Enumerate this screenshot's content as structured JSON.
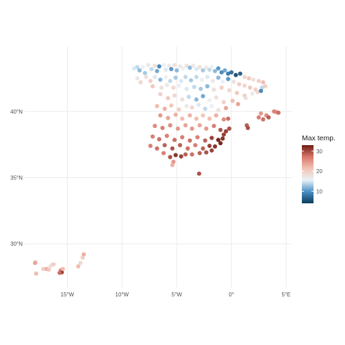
{
  "chart_data": {
    "type": "scatter",
    "title": "",
    "xlabel": "",
    "ylabel": "",
    "xlim": [
      -18.9,
      5.5
    ],
    "ylim": [
      26.7,
      44.9
    ],
    "x_ticks": [
      {
        "value": -15,
        "label": "15°W"
      },
      {
        "value": -10,
        "label": "10°W"
      },
      {
        "value": -5,
        "label": "5°W"
      },
      {
        "value": 0,
        "label": "0°"
      },
      {
        "value": 5,
        "label": "5°E"
      }
    ],
    "y_ticks": [
      {
        "value": 30,
        "label": "30°N"
      },
      {
        "value": 35,
        "label": "35°N"
      },
      {
        "value": 40,
        "label": "40°N"
      }
    ],
    "grid": true,
    "legend": {
      "title": "Max temp.",
      "placement": "right",
      "range": [
        4,
        33
      ],
      "ticks": [
        10,
        20,
        30
      ],
      "colors": [
        "#0b3c5d",
        "#4a90c4",
        "#eaf2f8",
        "#f2c3b3",
        "#d7766a",
        "#6e1b12"
      ]
    },
    "series": [
      {
        "values": [
          [
            -8.9,
            43.25,
            15
          ],
          [
            -8.6,
            43.35,
            14
          ],
          [
            -8.4,
            43.1,
            12
          ],
          [
            -8.1,
            43.35,
            16
          ],
          [
            -7.9,
            42.9,
            13
          ],
          [
            -7.6,
            43.5,
            17
          ],
          [
            -7.3,
            43.2,
            14
          ],
          [
            -7.0,
            43.45,
            18
          ],
          [
            -6.8,
            43.05,
            11
          ],
          [
            -6.6,
            43.4,
            9
          ],
          [
            -6.2,
            43.5,
            16
          ],
          [
            -6.0,
            43.15,
            15
          ],
          [
            -5.7,
            43.45,
            17
          ],
          [
            -5.5,
            43.2,
            10
          ],
          [
            -5.2,
            43.5,
            18
          ],
          [
            -5.0,
            43.1,
            12
          ],
          [
            -4.7,
            43.4,
            17
          ],
          [
            -4.4,
            43.25,
            16
          ],
          [
            -4.1,
            43.45,
            18
          ],
          [
            -3.8,
            43.3,
            12
          ],
          [
            -3.5,
            43.45,
            17
          ],
          [
            -3.2,
            43.2,
            15
          ],
          [
            -2.9,
            43.35,
            18
          ],
          [
            -2.6,
            43.1,
            13
          ],
          [
            -2.3,
            43.3,
            17
          ],
          [
            -2.0,
            43.15,
            14
          ],
          [
            -1.8,
            43.35,
            16
          ],
          [
            -1.5,
            43.05,
            12
          ],
          [
            -1.2,
            43.25,
            10
          ],
          [
            -0.9,
            42.95,
            9
          ],
          [
            -0.6,
            43.1,
            11
          ],
          [
            -0.3,
            42.85,
            8
          ],
          [
            0.0,
            42.95,
            7
          ],
          [
            0.4,
            42.75,
            5
          ],
          [
            0.8,
            42.85,
            6
          ],
          [
            1.2,
            42.6,
            19
          ],
          [
            1.6,
            42.5,
            21
          ],
          [
            2.0,
            42.4,
            18
          ],
          [
            2.5,
            42.3,
            20
          ],
          [
            2.9,
            42.2,
            22
          ],
          [
            3.1,
            41.9,
            20
          ],
          [
            2.8,
            41.8,
            14
          ],
          [
            -7.8,
            42.6,
            18
          ],
          [
            -7.4,
            42.3,
            20
          ],
          [
            -7.0,
            42.6,
            15
          ],
          [
            -6.5,
            42.4,
            12
          ],
          [
            -6.0,
            42.6,
            16
          ],
          [
            -5.6,
            42.3,
            14
          ],
          [
            -5.1,
            42.55,
            13
          ],
          [
            -4.6,
            42.3,
            15
          ],
          [
            -4.2,
            42.6,
            14
          ],
          [
            -3.7,
            42.35,
            13
          ],
          [
            -3.2,
            42.6,
            14
          ],
          [
            -2.7,
            42.4,
            16
          ],
          [
            -2.2,
            42.6,
            15
          ],
          [
            -1.7,
            42.3,
            17
          ],
          [
            -1.2,
            42.55,
            12
          ],
          [
            -0.8,
            42.25,
            16
          ],
          [
            -0.3,
            42.45,
            10
          ],
          [
            0.2,
            42.25,
            18
          ],
          [
            0.7,
            42.05,
            20
          ],
          [
            1.2,
            41.95,
            19
          ],
          [
            1.7,
            41.8,
            21
          ],
          [
            2.2,
            41.65,
            20
          ],
          [
            -8.3,
            42.2,
            19
          ],
          [
            -8.6,
            42.5,
            17
          ],
          [
            -7.2,
            41.9,
            21
          ],
          [
            -6.4,
            41.8,
            18
          ],
          [
            -5.9,
            42.0,
            17
          ],
          [
            -5.3,
            41.8,
            19
          ],
          [
            -4.8,
            41.95,
            16
          ],
          [
            -4.1,
            41.7,
            15
          ],
          [
            -3.4,
            41.85,
            14
          ],
          [
            -2.8,
            41.7,
            13
          ],
          [
            -2.2,
            41.9,
            12
          ],
          [
            -1.6,
            41.65,
            18
          ],
          [
            -0.9,
            41.8,
            20
          ],
          [
            -0.2,
            41.6,
            19
          ],
          [
            0.5,
            41.4,
            21
          ],
          [
            1.2,
            41.2,
            20
          ],
          [
            -6.5,
            41.3,
            20
          ],
          [
            -5.8,
            41.0,
            21
          ],
          [
            -5.2,
            41.2,
            19
          ],
          [
            -4.5,
            40.9,
            18
          ],
          [
            -3.9,
            41.1,
            14
          ],
          [
            -3.2,
            40.9,
            12
          ],
          [
            -2.6,
            41.15,
            11
          ],
          [
            -2.0,
            40.85,
            16
          ],
          [
            -1.4,
            41.05,
            18
          ],
          [
            -0.7,
            40.7,
            20
          ],
          [
            0.1,
            40.8,
            22
          ],
          [
            0.6,
            40.55,
            24
          ],
          [
            -6.8,
            40.4,
            22
          ],
          [
            -6.1,
            40.2,
            23
          ],
          [
            -5.5,
            40.45,
            21
          ],
          [
            -4.8,
            40.15,
            20
          ],
          [
            -4.1,
            40.4,
            17
          ],
          [
            -3.6,
            40.3,
            19
          ],
          [
            -3.0,
            40.5,
            15
          ],
          [
            -2.4,
            40.2,
            14
          ],
          [
            -1.8,
            40.4,
            16
          ],
          [
            -1.2,
            40.1,
            18
          ],
          [
            -0.5,
            40.25,
            24
          ],
          [
            -6.5,
            39.7,
            25
          ],
          [
            -5.8,
            39.5,
            24
          ],
          [
            -5.1,
            39.75,
            23
          ],
          [
            -4.5,
            39.45,
            22
          ],
          [
            -3.8,
            39.7,
            23
          ],
          [
            -3.2,
            39.45,
            22
          ],
          [
            -2.6,
            39.7,
            21
          ],
          [
            -2.0,
            39.45,
            22
          ],
          [
            -1.4,
            39.7,
            23
          ],
          [
            -0.7,
            39.4,
            26
          ],
          [
            -0.3,
            39.45,
            28
          ],
          [
            -7.0,
            38.9,
            26
          ],
          [
            -6.3,
            38.75,
            27
          ],
          [
            -5.6,
            38.95,
            26
          ],
          [
            -4.9,
            38.7,
            25
          ],
          [
            -4.2,
            38.95,
            24
          ],
          [
            -3.6,
            38.7,
            25
          ],
          [
            -2.9,
            38.95,
            24
          ],
          [
            -2.3,
            38.7,
            25
          ],
          [
            -1.6,
            38.9,
            27
          ],
          [
            -1.0,
            38.6,
            30
          ],
          [
            -0.5,
            38.5,
            31
          ],
          [
            -0.2,
            38.7,
            30
          ],
          [
            -7.2,
            38.1,
            27
          ],
          [
            -6.6,
            37.9,
            28
          ],
          [
            -5.9,
            38.15,
            27
          ],
          [
            -5.2,
            37.85,
            28
          ],
          [
            -4.5,
            38.05,
            27
          ],
          [
            -3.8,
            37.8,
            28
          ],
          [
            -3.1,
            38.05,
            27
          ],
          [
            -2.4,
            37.8,
            29
          ],
          [
            -1.8,
            38.0,
            31
          ],
          [
            -1.2,
            37.85,
            33
          ],
          [
            -0.8,
            37.95,
            32
          ],
          [
            -0.7,
            38.25,
            31
          ],
          [
            -7.4,
            37.4,
            27
          ],
          [
            -6.8,
            37.2,
            28
          ],
          [
            -6.1,
            37.45,
            29
          ],
          [
            -5.4,
            37.2,
            30
          ],
          [
            -4.7,
            37.45,
            29
          ],
          [
            -4.0,
            37.2,
            28
          ],
          [
            -3.3,
            37.45,
            27
          ],
          [
            -2.6,
            37.2,
            29
          ],
          [
            -2.0,
            37.4,
            31
          ],
          [
            -1.5,
            37.35,
            32
          ],
          [
            -1.0,
            37.6,
            33
          ],
          [
            -6.2,
            36.85,
            27
          ],
          [
            -5.6,
            36.55,
            30
          ],
          [
            -5.1,
            36.7,
            32
          ],
          [
            -4.6,
            36.6,
            31
          ],
          [
            -4.2,
            36.75,
            29
          ],
          [
            -3.6,
            36.75,
            28
          ],
          [
            -2.9,
            36.85,
            29
          ],
          [
            -2.3,
            36.9,
            30
          ],
          [
            -1.8,
            37.05,
            31
          ],
          [
            -5.3,
            36.2,
            25
          ],
          [
            -5.4,
            35.95,
            23
          ],
          [
            -2.95,
            35.3,
            30
          ],
          [
            1.4,
            38.95,
            29
          ],
          [
            1.5,
            38.75,
            30
          ],
          [
            2.5,
            39.55,
            27
          ],
          [
            2.9,
            39.4,
            28
          ],
          [
            3.2,
            39.7,
            26
          ],
          [
            3.4,
            39.55,
            29
          ],
          [
            2.7,
            39.85,
            25
          ],
          [
            3.9,
            40.0,
            27
          ],
          [
            4.1,
            39.95,
            26
          ],
          [
            4.3,
            39.9,
            28
          ],
          [
            1.3,
            41.0,
            18
          ],
          [
            1.9,
            41.35,
            17
          ],
          [
            2.4,
            41.45,
            19
          ],
          [
            2.7,
            41.55,
            9
          ],
          [
            -17.9,
            28.65,
            18
          ],
          [
            -17.95,
            28.55,
            24
          ],
          [
            -17.85,
            27.75,
            22
          ],
          [
            -17.2,
            28.1,
            20
          ],
          [
            -16.9,
            28.1,
            23
          ],
          [
            -16.7,
            28.05,
            21
          ],
          [
            -16.4,
            28.4,
            19
          ],
          [
            -16.25,
            28.45,
            20
          ],
          [
            -16.55,
            28.3,
            18
          ],
          [
            -15.6,
            28.0,
            26
          ],
          [
            -15.5,
            27.85,
            31
          ],
          [
            -15.4,
            28.1,
            22
          ],
          [
            -15.7,
            27.8,
            28
          ],
          [
            -14.0,
            28.3,
            22
          ],
          [
            -13.8,
            28.55,
            19
          ],
          [
            -13.6,
            28.95,
            20
          ],
          [
            -13.5,
            29.2,
            23
          ]
        ]
      }
    ]
  }
}
